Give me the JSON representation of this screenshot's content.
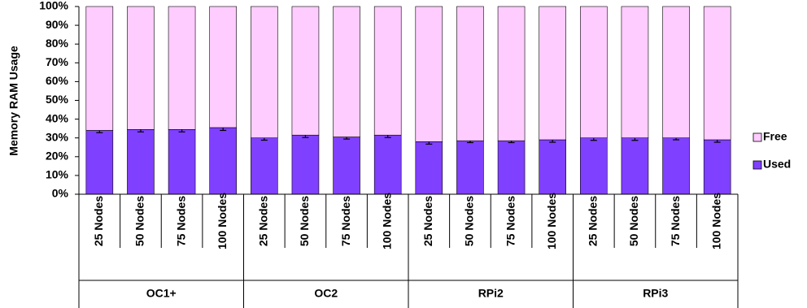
{
  "chart_data": {
    "type": "stacked_bar",
    "y_label": "Memory RAM Usage",
    "categories": [
      "25 Nodes",
      "50 Nodes",
      "75 Nodes",
      "100 Nodes",
      "25 Nodes",
      "50 Nodes",
      "75 Nodes",
      "100 Nodes",
      "25 Nodes",
      "50 Nodes",
      "75 Nodes",
      "100 Nodes",
      "25 Nodes",
      "50 Nodes",
      "75 Nodes",
      "100 Nodes"
    ],
    "x_groups": [
      "OC1+",
      "OC2",
      "RPi2",
      "RPi3"
    ],
    "series": [
      {
        "name": "Used",
        "color": "#8040ff",
        "values": [
          34,
          34.5,
          34.5,
          35.5,
          30,
          31.5,
          30.5,
          31.5,
          28,
          28.5,
          28.5,
          29,
          30,
          30,
          30,
          29
        ],
        "errors": [
          1.2,
          1.3,
          1.3,
          1.5,
          1.2,
          1.3,
          1.1,
          1.3,
          1.3,
          1.0,
          1.0,
          1.3,
          1.3,
          1.3,
          1.0,
          1.3
        ]
      },
      {
        "name": "Free",
        "color": "#ffccff",
        "values": [
          66,
          65.5,
          65.5,
          64.5,
          70,
          68.5,
          69.5,
          68.5,
          72,
          71.5,
          71.5,
          71,
          70,
          70,
          70,
          71
        ]
      }
    ],
    "ylim": [
      0,
      100
    ],
    "yticks": [
      {
        "value": 0,
        "label": "0%"
      },
      {
        "value": 10,
        "label": "10%"
      },
      {
        "value": 20,
        "label": "20%"
      },
      {
        "value": 30,
        "label": "30%"
      },
      {
        "value": 40,
        "label": "40%"
      },
      {
        "value": 50,
        "label": "50%"
      },
      {
        "value": 60,
        "label": "60%"
      },
      {
        "value": 70,
        "label": "70%"
      },
      {
        "value": 80,
        "label": "80%"
      },
      {
        "value": 90,
        "label": "90%"
      },
      {
        "value": 100,
        "label": "100%"
      }
    ],
    "legend": "right"
  }
}
